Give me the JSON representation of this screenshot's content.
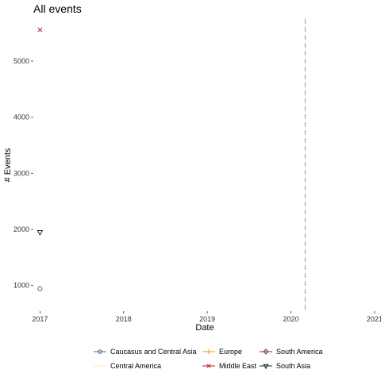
{
  "chart_data": {
    "type": "scatter",
    "title": "All events",
    "xlabel": "Date",
    "ylabel": "# Events",
    "xlim": [
      2016.93,
      2021.02
    ],
    "ylim": [
      540,
      5780
    ],
    "xticks": [
      "2017",
      "2018",
      "2019",
      "2020",
      "2021"
    ],
    "yticks": [
      1000,
      2000,
      3000,
      4000,
      5000
    ],
    "grid": false,
    "legend_position": "bottom",
    "reference_line": {
      "x": 2020.17,
      "style": "dashed",
      "color": "#999999"
    },
    "series": [
      {
        "name": "Caucasus and Central Asia",
        "marker": "circle",
        "color": "#4f6d8a",
        "points": [
          {
            "x": 2017.0,
            "y": 940
          }
        ]
      },
      {
        "name": "Central America",
        "marker": "line",
        "color": "#fde9a8",
        "points": []
      },
      {
        "name": "Europe",
        "marker": "plus",
        "color": "#e69f00",
        "points": []
      },
      {
        "name": "Middle East",
        "marker": "cross",
        "color": "#c0152f",
        "points": [
          {
            "x": 2017.0,
            "y": 5560
          }
        ]
      },
      {
        "name": "South America",
        "marker": "diamond",
        "color": "#7b2d52",
        "points": []
      },
      {
        "name": "South Asia",
        "marker": "triangle-down",
        "color": "#222222",
        "points": [
          {
            "x": 2017.0,
            "y": 1950
          }
        ]
      }
    ]
  }
}
